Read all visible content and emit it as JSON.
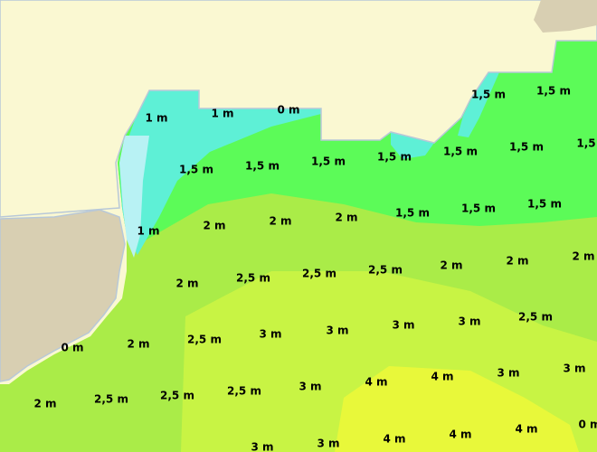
{
  "labels": [
    "1,5 m",
    "1,5 m",
    "1 m",
    "1 m",
    "0 m",
    "1,5 m",
    "1,5 m",
    "1,5 m",
    "1,5 m",
    "1,5 m",
    "1,5 m",
    "1,5",
    "1 m",
    "2 m",
    "2 m",
    "2 m",
    "1,5 m",
    "1,5 m",
    "1,5 m",
    "2 m",
    "2,5 m",
    "2,5 m",
    "2,5 m",
    "2 m",
    "2 m",
    "2 m",
    "0 m",
    "2 m",
    "2,5 m",
    "3 m",
    "3 m",
    "3 m",
    "3 m",
    "2,5 m",
    "2 m",
    "2,5 m",
    "2,5 m",
    "2,5 m",
    "3 m",
    "4 m",
    "4 m",
    "3 m",
    "3 m",
    "3 m",
    "3 m",
    "4 m",
    "4 m",
    "4 m",
    "0 m"
  ]
}
